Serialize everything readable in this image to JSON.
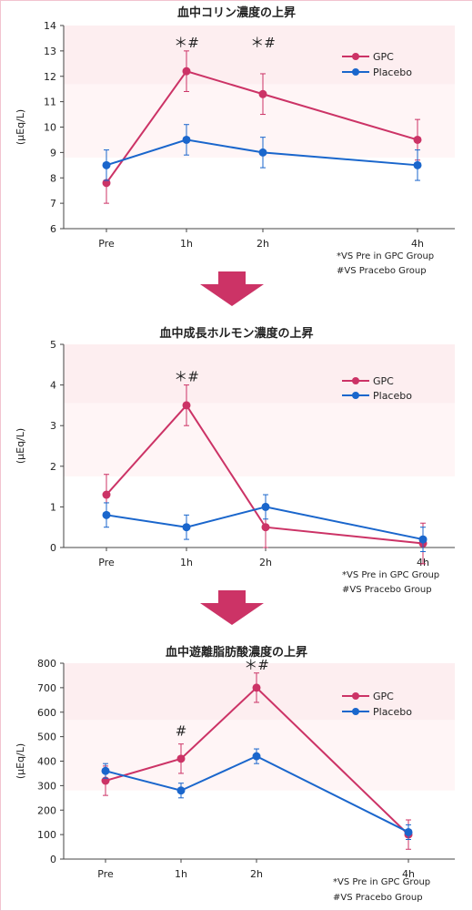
{
  "chart_data": [
    {
      "type": "line",
      "title": "血中コリン濃度の上昇",
      "ylabel": "(μEq/L)",
      "categories": [
        "Pre",
        "1h",
        "2h",
        "4h"
      ],
      "x": [
        0,
        1,
        2,
        4
      ],
      "ylim": [
        6,
        14
      ],
      "yticks": [
        "14",
        "13",
        "12",
        "11",
        "10",
        "9",
        "8",
        "7",
        "6"
      ],
      "series": [
        {
          "name": "GPC",
          "color": "#cc3366",
          "values": [
            7.8,
            12.2,
            11.3,
            9.5
          ],
          "err": [
            0.8,
            0.8,
            0.8,
            0.8
          ]
        },
        {
          "name": "Placebo",
          "color": "#1a66cc",
          "values": [
            8.5,
            9.5,
            9.0,
            8.5
          ],
          "err": [
            0.6,
            0.6,
            0.6,
            0.6
          ]
        }
      ],
      "annotations": [
        {
          "text": "＊#",
          "x": 1,
          "y": 13.0
        },
        {
          "text": "＊#",
          "x": 2,
          "y": 13.0
        }
      ],
      "notes": [
        "*VS Pre  in GPC Group",
        "#VS Pracebo Group"
      ]
    },
    {
      "type": "line",
      "title": "血中成長ホルモン濃度の上昇",
      "ylabel": "(μEq/L)",
      "categories": [
        "Pre",
        "1h",
        "2h",
        "4h"
      ],
      "x": [
        0,
        1,
        2,
        4
      ],
      "ylim": [
        0,
        5
      ],
      "yticks": [
        "5",
        "4",
        "3",
        "2",
        "1",
        "0"
      ],
      "series": [
        {
          "name": "GPC",
          "color": "#cc3366",
          "values": [
            1.3,
            3.5,
            0.5,
            0.1
          ],
          "err": [
            0.5,
            0.5,
            0.5,
            0.5
          ]
        },
        {
          "name": "Placebo",
          "color": "#1a66cc",
          "values": [
            0.8,
            0.5,
            1.0,
            0.2
          ],
          "err": [
            0.3,
            0.3,
            0.3,
            0.3
          ]
        }
      ],
      "annotations": [
        {
          "text": "＊#",
          "x": 1,
          "y": 4.0
        }
      ],
      "notes": [
        "*VS Pre  in GPC Group",
        "#VS Pracebo Group"
      ]
    },
    {
      "type": "line",
      "title": "血中遊離脂肪酸濃度の上昇",
      "ylabel": "(μEq/L)",
      "categories": [
        "Pre",
        "1h",
        "2h",
        "4h"
      ],
      "x": [
        0,
        1,
        2,
        4
      ],
      "ylim": [
        0,
        800
      ],
      "yticks": [
        "800",
        "700",
        "600",
        "500",
        "400",
        "300",
        "200",
        "100",
        "0"
      ],
      "series": [
        {
          "name": "GPC",
          "color": "#cc3366",
          "values": [
            320,
            410,
            700,
            100
          ],
          "err": [
            60,
            60,
            60,
            60
          ]
        },
        {
          "name": "Placebo",
          "color": "#1a66cc",
          "values": [
            360,
            280,
            420,
            110
          ],
          "err": [
            30,
            30,
            30,
            30
          ]
        }
      ],
      "annotations": [
        {
          "text": "#",
          "x": 1,
          "y": 490
        },
        {
          "text": "＊#",
          "x": 2,
          "y": 760
        }
      ],
      "notes": [
        "*VS Pre  in GPC Group",
        "#VS Pracebo Group"
      ]
    }
  ],
  "arrows": {
    "color": "#cc3366"
  },
  "colors": {
    "shade": "#fdeef0",
    "frame": "#f2c4cf"
  }
}
